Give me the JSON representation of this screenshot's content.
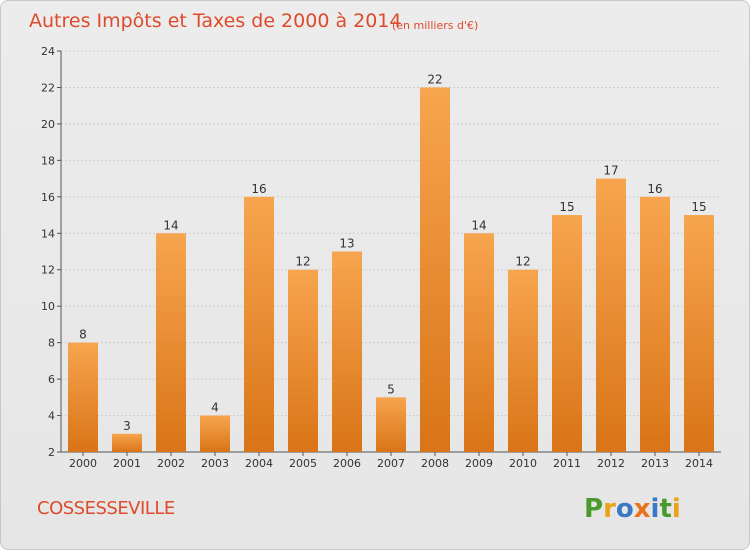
{
  "chart_data": {
    "type": "bar",
    "title": "Autres Impôts et Taxes de 2000 à 2014",
    "subtitle": "(en milliers d'€)",
    "categories": [
      "2000",
      "2001",
      "2002",
      "2003",
      "2004",
      "2005",
      "2006",
      "2007",
      "2008",
      "2009",
      "2010",
      "2011",
      "2012",
      "2013",
      "2014"
    ],
    "values": [
      8,
      3,
      14,
      4,
      16,
      12,
      13,
      5,
      22,
      14,
      12,
      15,
      17,
      16,
      15
    ],
    "ylim": [
      2,
      24
    ],
    "yticks": [
      2,
      4,
      6,
      8,
      10,
      12,
      14,
      16,
      18,
      20,
      22,
      24
    ],
    "grid": true,
    "bar_color_top": "#f7a54f",
    "bar_color_bottom": "#d97417"
  },
  "footer": {
    "town": "COSSESSEVILLE",
    "logo": "Proxiti",
    "logo_colors": [
      "#4a9a2e",
      "#e8a317",
      "#3a78c4",
      "#e8731a",
      "#3a78c4",
      "#4a9a2e",
      "#e8a317"
    ]
  }
}
